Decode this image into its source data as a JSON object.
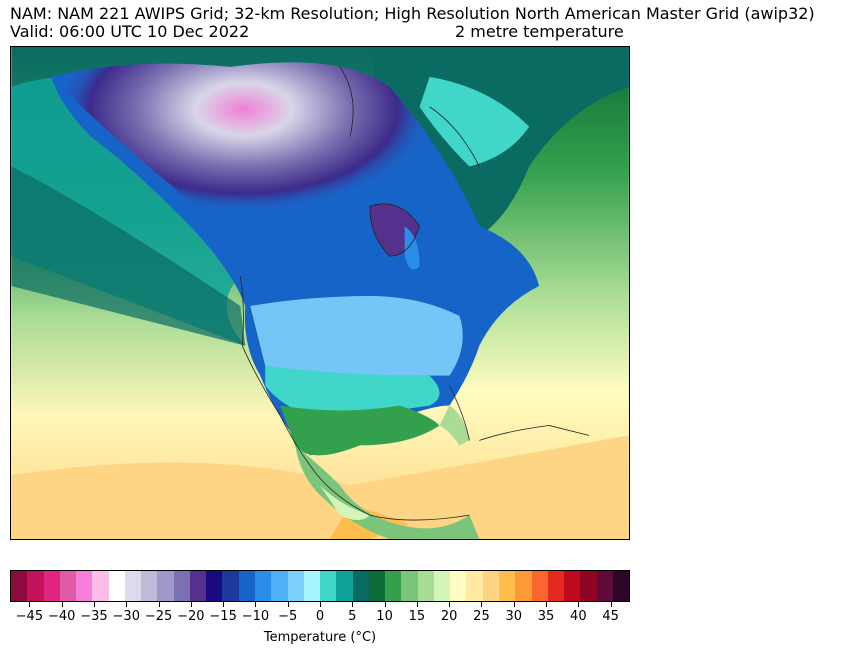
{
  "header": {
    "line1": "NAM: NAM 221 AWIPS Grid; 32-km Resolution; High Resolution North American Master Grid (awip32)",
    "valid": "Valid: 06:00 UTC 10 Dec 2022",
    "variable": "2 metre temperature"
  },
  "colorbar": {
    "label": "Temperature (°C)",
    "min": -48,
    "max": 48,
    "tick_values": [
      -45,
      -40,
      -35,
      -30,
      -25,
      -20,
      -15,
      -10,
      -5,
      0,
      5,
      10,
      15,
      20,
      25,
      30,
      35,
      40,
      45
    ],
    "tick_labels": [
      "−45",
      "−40",
      "−35",
      "−30",
      "−25",
      "−20",
      "−15",
      "−10",
      "−5",
      "0",
      "5",
      "10",
      "15",
      "20",
      "25",
      "30",
      "35",
      "40",
      "45"
    ],
    "colors": [
      "#8c0a3c",
      "#c2135a",
      "#e0247f",
      "#e05aa8",
      "#f77fd9",
      "#fdbde8",
      "#ffffff",
      "#dcdaec",
      "#bdbbd9",
      "#9e99c8",
      "#7b70b2",
      "#55308c",
      "#1a0a82",
      "#1c3a9e",
      "#1764c8",
      "#2a8ee8",
      "#4fb1f5",
      "#7dd0fb",
      "#a6f5fc",
      "#40d6c9",
      "#10a39a",
      "#0a6b63",
      "#0c6b36",
      "#33a04d",
      "#7ac57a",
      "#a9dc95",
      "#d3f5b8",
      "#fffdc0",
      "#ffeca2",
      "#fed584",
      "#febe4d",
      "#fd9a37",
      "#f9672c",
      "#e6291f",
      "#bd0a1d",
      "#8e0622",
      "#600a3c",
      "#2d0627"
    ]
  }
}
